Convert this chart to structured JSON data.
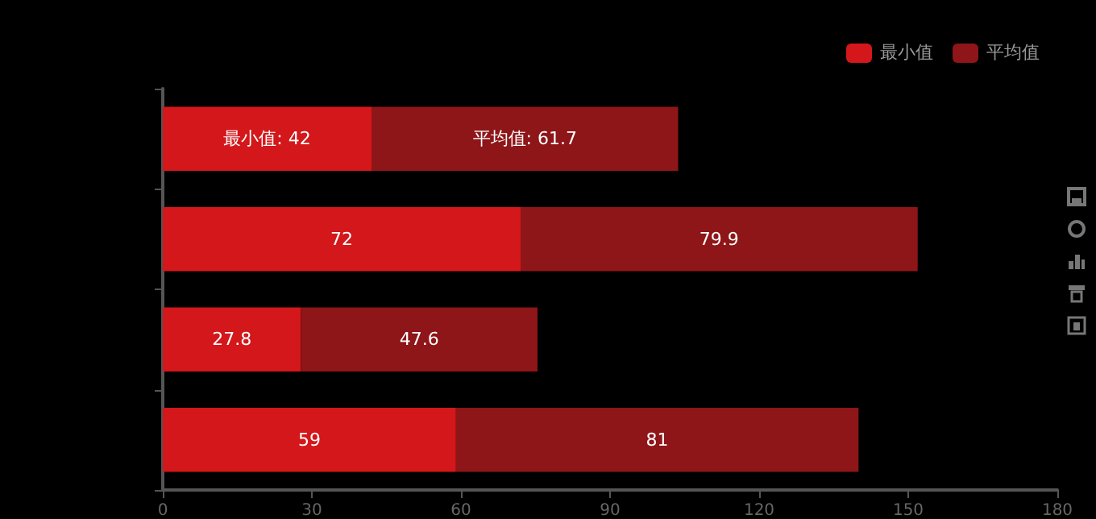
{
  "chart_data": {
    "type": "bar",
    "orientation": "horizontal",
    "stacked": true,
    "categories": [
      null,
      null,
      null,
      null
    ],
    "series": [
      {
        "name": "最小值",
        "color": "#d3171a",
        "values": [
          42,
          72,
          27.8,
          59
        ],
        "value_labels": [
          "最小值: 42",
          "72",
          "27.8",
          "59"
        ]
      },
      {
        "name": "平均值",
        "color": "#8e1518",
        "values": [
          61.7,
          79.9,
          47.6,
          81
        ],
        "value_labels": [
          "平均值: 61.7",
          "79.9",
          "47.6",
          "81"
        ]
      }
    ],
    "xlim": [
      0,
      180
    ],
    "xticks": [
      0,
      30,
      60,
      90,
      120,
      150,
      180
    ],
    "grid": false,
    "legend": "top right"
  }
}
